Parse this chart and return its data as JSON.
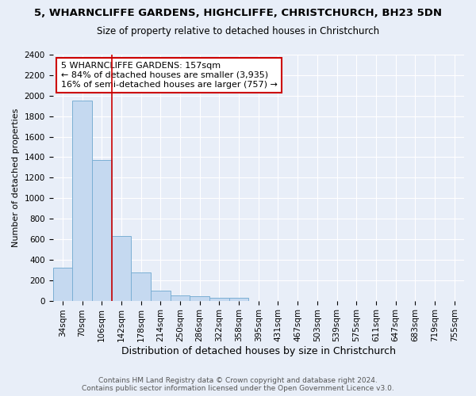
{
  "title": "5, WHARNCLIFFE GARDENS, HIGHCLIFFE, CHRISTCHURCH, BH23 5DN",
  "subtitle": "Size of property relative to detached houses in Christchurch",
  "xlabel": "Distribution of detached houses by size in Christchurch",
  "ylabel": "Number of detached properties",
  "categories": [
    "34sqm",
    "70sqm",
    "106sqm",
    "142sqm",
    "178sqm",
    "214sqm",
    "250sqm",
    "286sqm",
    "322sqm",
    "358sqm",
    "395sqm",
    "431sqm",
    "467sqm",
    "503sqm",
    "539sqm",
    "575sqm",
    "611sqm",
    "647sqm",
    "683sqm",
    "719sqm",
    "755sqm"
  ],
  "values": [
    320,
    1950,
    1375,
    630,
    275,
    100,
    50,
    40,
    25,
    25,
    0,
    0,
    0,
    0,
    0,
    0,
    0,
    0,
    0,
    0,
    0
  ],
  "bar_color": "#c5d9f0",
  "bar_edgecolor": "#7bafd4",
  "vline_x": 2.5,
  "vline_color": "#cc0000",
  "annotation_text": "5 WHARNCLIFFE GARDENS: 157sqm\n← 84% of detached houses are smaller (3,935)\n16% of semi-detached houses are larger (757) →",
  "annotation_box_color": "white",
  "annotation_box_edgecolor": "#cc0000",
  "ylim": [
    0,
    2400
  ],
  "yticks": [
    0,
    200,
    400,
    600,
    800,
    1000,
    1200,
    1400,
    1600,
    1800,
    2000,
    2200,
    2400
  ],
  "footer1": "Contains HM Land Registry data © Crown copyright and database right 2024.",
  "footer2": "Contains public sector information licensed under the Open Government Licence v3.0.",
  "bg_color": "#e8eef8",
  "grid_color": "white",
  "title_fontsize": 9.5,
  "subtitle_fontsize": 8.5,
  "xlabel_fontsize": 9,
  "ylabel_fontsize": 8,
  "tick_fontsize": 7.5,
  "footer_fontsize": 6.5,
  "annotation_fontsize": 8
}
